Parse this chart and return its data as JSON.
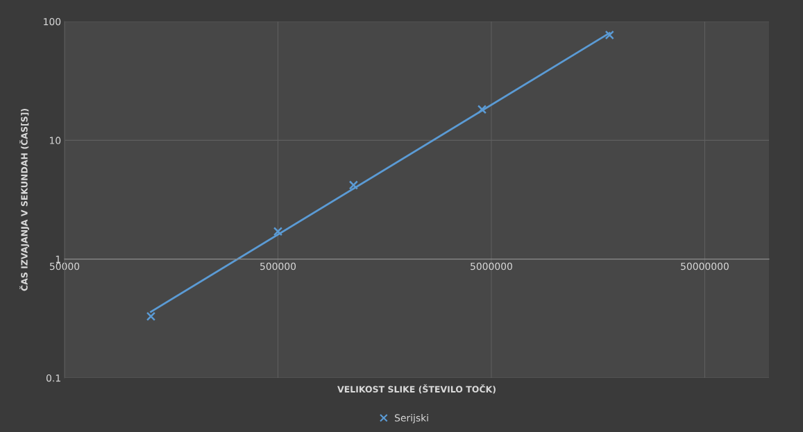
{
  "chart_data": {
    "type": "scatter",
    "xlabel": "VELIKOST SLIKE (ŠTEVILO TOČK)",
    "ylabel": "ČAS IZVAJANJA V SEKUNDAH (ČAS[S])",
    "x": [
      127000,
      500000,
      1130000,
      4520000,
      17900000
    ],
    "series": [
      {
        "name": "Serijski",
        "color": "#5b9bd5",
        "marker": "cross",
        "values": [
          0.33,
          1.71,
          4.2,
          18.2,
          77
        ]
      },
      {
        "type": "line",
        "color": "#5b9bd5",
        "x": [
          127000,
          17900000
        ],
        "values": [
          0.36,
          80
        ]
      }
    ],
    "log": "xy",
    "xlim": [
      50000,
      100000000
    ],
    "xticks": [
      50000,
      500000,
      5000000,
      50000000
    ],
    "ylim": [
      0.1,
      100
    ],
    "yticks": [
      0.1,
      1,
      10,
      100
    ],
    "grid": true,
    "legend": "bottom"
  }
}
